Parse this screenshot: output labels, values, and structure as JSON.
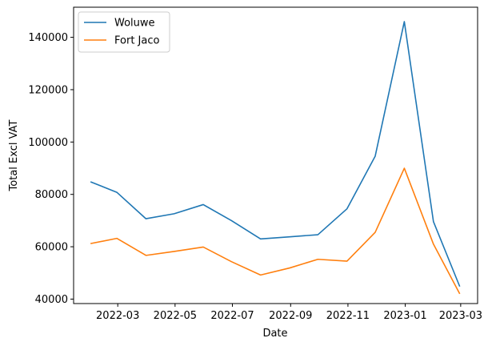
{
  "chart_data": {
    "type": "line",
    "title": "",
    "xlabel": "Date",
    "ylabel": "Total Excl VAT",
    "x": [
      "2022-01-31",
      "2022-02-28",
      "2022-03-31",
      "2022-04-30",
      "2022-05-31",
      "2022-06-30",
      "2022-07-31",
      "2022-08-31",
      "2022-09-30",
      "2022-10-31",
      "2022-11-30",
      "2022-12-31",
      "2023-01-31",
      "2023-02-28"
    ],
    "xlim": [
      "2022-01-13",
      "2023-03-19"
    ],
    "ylim": [
      38300,
      151500
    ],
    "xticks": [
      "2022-03",
      "2022-05",
      "2022-07",
      "2022-09",
      "2022-11",
      "2023-01",
      "2023-03"
    ],
    "yticks": [
      40000,
      60000,
      80000,
      100000,
      120000,
      140000
    ],
    "ytick_labels": [
      "40000",
      "60000",
      "80000",
      "100000",
      "120000",
      "140000"
    ],
    "legend_position": "top-left",
    "grid": false,
    "series": [
      {
        "name": "Woluwe",
        "color": "#1f77b4",
        "values": [
          84800,
          80800,
          70700,
          72600,
          76100,
          70000,
          63000,
          63800,
          64600,
          74500,
          94600,
          146000,
          69600,
          44800
        ]
      },
      {
        "name": "Fort Jaco",
        "color": "#ff7f0e",
        "values": [
          61200,
          63200,
          56700,
          58200,
          59900,
          54300,
          49200,
          51900,
          55200,
          54500,
          65500,
          90000,
          61000,
          42000
        ]
      }
    ]
  }
}
